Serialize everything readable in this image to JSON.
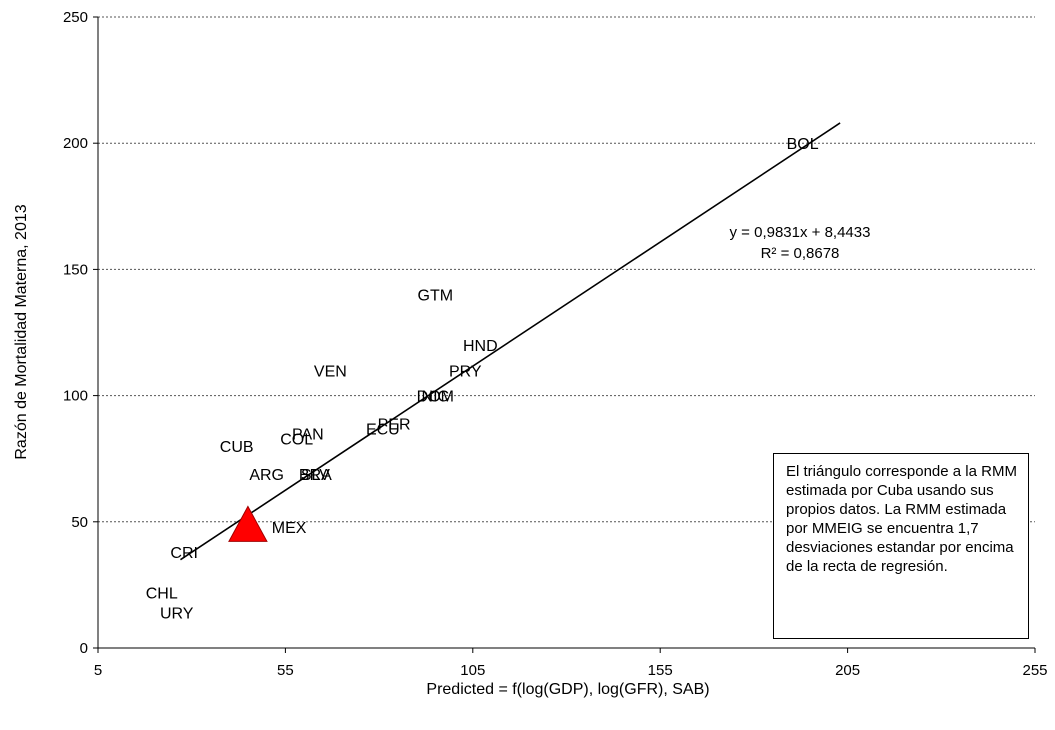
{
  "chart_data": {
    "type": "scatter",
    "xlabel": "Predicted = f(log(GDP), log(GFR), SAB)",
    "ylabel": "Razón de Mortalidad Materna, 2013",
    "xlim": [
      5,
      255
    ],
    "ylim": [
      0,
      250
    ],
    "x_ticks": [
      "5",
      "55",
      "105",
      "155",
      "205",
      "255"
    ],
    "y_ticks": [
      "0",
      "50",
      "100",
      "150",
      "200",
      "250"
    ],
    "grid": "horizontal-dotted",
    "points": [
      {
        "label": "BOL",
        "x": 193,
        "y": 200
      },
      {
        "label": "GTM",
        "x": 95,
        "y": 140
      },
      {
        "label": "HND",
        "x": 107,
        "y": 120
      },
      {
        "label": "PRY",
        "x": 103,
        "y": 110
      },
      {
        "label": "VEN",
        "x": 67,
        "y": 110
      },
      {
        "label": "DOM",
        "x": 95,
        "y": 100
      },
      {
        "label": "NIC",
        "x": 95,
        "y": 100
      },
      {
        "label": "PER",
        "x": 84,
        "y": 89
      },
      {
        "label": "ECU",
        "x": 81,
        "y": 87
      },
      {
        "label": "PAN",
        "x": 61,
        "y": 85
      },
      {
        "label": "COL",
        "x": 58,
        "y": 83
      },
      {
        "label": "CUB",
        "x": 42,
        "y": 80
      },
      {
        "label": "ARG",
        "x": 50,
        "y": 69
      },
      {
        "label": "BRA",
        "x": 63,
        "y": 69
      },
      {
        "label": "SLV",
        "x": 63,
        "y": 69
      },
      {
        "label": "MEX",
        "x": 56,
        "y": 48
      },
      {
        "label": "CRI",
        "x": 28,
        "y": 38
      },
      {
        "label": "CHL",
        "x": 22,
        "y": 22
      },
      {
        "label": "URY",
        "x": 26,
        "y": 14
      }
    ],
    "highlight_marker": {
      "shape": "triangle",
      "x": 45,
      "y": 45,
      "color": "#ff0000"
    },
    "trendline": {
      "x_start": 27,
      "x_end": 203,
      "equation": "y = 0,9831x + 8,4433",
      "r2": "R² = 0,8678",
      "slope": 0.9831,
      "intercept": 8.4433
    },
    "annotation": "El triángulo corresponde a la RMM estimada por Cuba usando sus propios datos. La RMM estimada por MMEIG se encuentra 1,7 desviaciones estandar por encima de la recta de regresión."
  }
}
